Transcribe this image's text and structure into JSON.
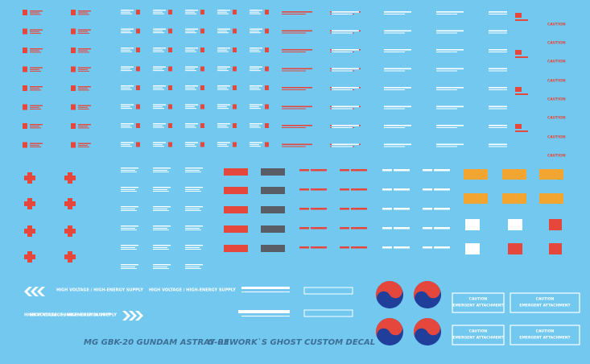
{
  "sheet": {
    "title": "MG GBK-20 GUNDAM ASTRAY 03",
    "subtitle": "G-REWORK`S GHOST CUSTOM DECAL",
    "warnings": [
      "HIGH VOLTAGE / HIGH-ENERGY SUPPLY",
      "HIGH VOLTAGE / HIGH-ENERGY SUPPLY",
      "HIGH VOLTAGE / HIGH-ENERGY SUPPLY",
      "HIGH VOLTAGE / HIGH-ENERGY SUPPLY"
    ],
    "caution_boxes": [
      {
        "heading": "CAUTION",
        "text": "EMERGENT ATTACHMENT"
      },
      {
        "heading": "CAUTION",
        "text": "EMERGENT ATTACHMENT"
      },
      {
        "heading": "CAUTION",
        "text": "EMERGENT ATTACHMENT"
      },
      {
        "heading": "CAUTION",
        "text": "EMERGENT ATTACHMENT"
      }
    ],
    "caution_tags": [
      "CAUTION",
      "CAUTION",
      "CAUTION",
      "CAUTION",
      "CAUTION",
      "CAUTION",
      "CAUTION",
      "CAUTION"
    ]
  }
}
